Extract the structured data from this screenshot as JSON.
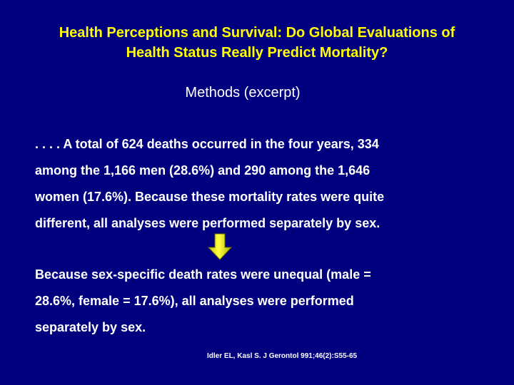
{
  "slide": {
    "title_line1": "Health Perceptions and Survival: Do Global Evaluations of",
    "title_line2": "Health Status Really Predict Mortality?",
    "subtitle": "Methods (excerpt)",
    "paragraph1": [
      ". . . . A total of 624 deaths occurred in the four years, 334",
      "among the 1,166 men (28.6%) and 290 among the 1,646",
      "women (17.6%).  Because these mortality rates were quite",
      "different, all analyses were performed separately by sex."
    ],
    "paragraph2": [
      "Because sex-specific death rates were unequal (male =",
      "28.6%, female = 17.6%), all analyses were performed",
      "separately by sex."
    ],
    "citation": "Idler EL, Kasl S. J Gerontol 991;46(2):S55-65",
    "arrow_icon": "down-arrow-icon",
    "colors": {
      "background": "#01017f",
      "title": "#ffff00",
      "body_text": "#ffffff",
      "arrow_fill": "#ffff00"
    }
  }
}
